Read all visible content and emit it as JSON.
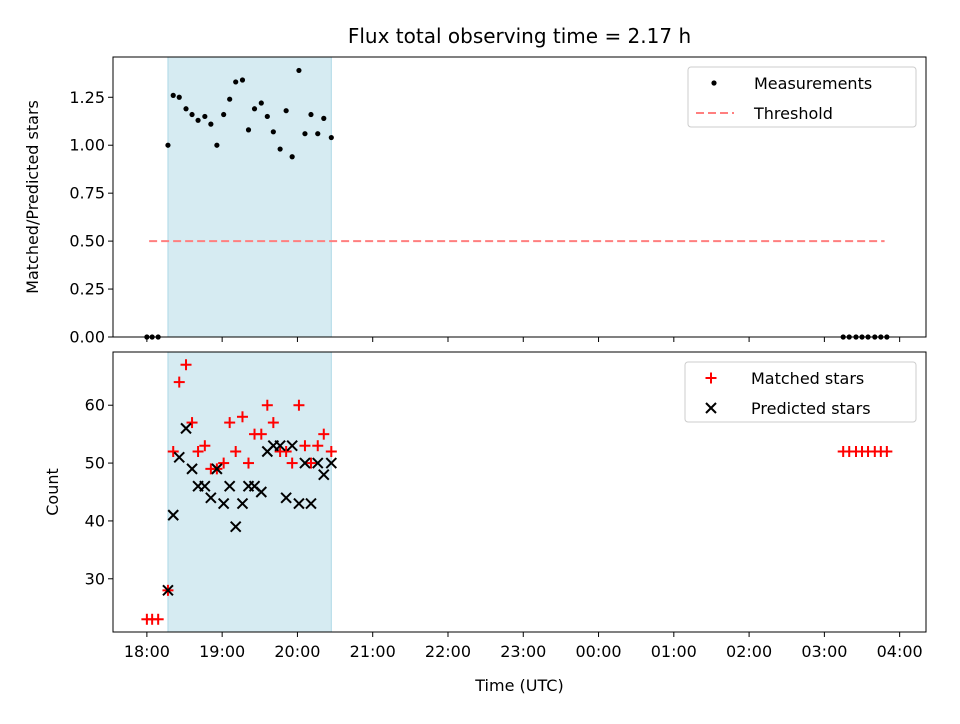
{
  "title": "Flux total observing time = 2.17 h",
  "chart_data": [
    {
      "type": "scatter",
      "panel": "top",
      "title": "Flux total observing time = 2.17 h",
      "xlabel": "",
      "ylabel": "Matched/Predicted stars",
      "xlim": [
        17.55,
        28.35
      ],
      "ylim": [
        0.0,
        1.46
      ],
      "x_axis": "time (hours since 18:00 base date, shown as UTC clock)",
      "yticks": [
        0.0,
        0.25,
        0.5,
        0.75,
        1.0,
        1.25
      ],
      "ytick_labels": [
        "0.00",
        "0.25",
        "0.50",
        "0.75",
        "1.00",
        "1.25"
      ],
      "highlight_span": {
        "x0": 18.28,
        "x1": 20.45,
        "color": "#add8e6"
      },
      "legend": {
        "placement": "upper right",
        "entries": [
          "Measurements",
          "Threshold"
        ]
      },
      "series": [
        {
          "name": "Measurements",
          "style": "dot",
          "color": "#000000",
          "x": [
            18.0,
            18.07,
            18.15,
            18.28,
            18.35,
            18.43,
            18.52,
            18.6,
            18.68,
            18.77,
            18.85,
            18.93,
            19.02,
            19.1,
            19.18,
            19.27,
            19.35,
            19.43,
            19.52,
            19.6,
            19.68,
            19.77,
            19.85,
            19.93,
            20.02,
            20.1,
            20.18,
            20.27,
            20.35,
            20.45,
            27.25,
            27.33,
            27.42,
            27.5,
            27.58,
            27.67,
            27.75,
            27.83
          ],
          "y": [
            0.0,
            0.0,
            0.0,
            1.0,
            1.26,
            1.25,
            1.19,
            1.16,
            1.13,
            1.15,
            1.11,
            1.0,
            1.16,
            1.24,
            1.33,
            1.34,
            1.08,
            1.19,
            1.22,
            1.15,
            1.07,
            0.98,
            1.18,
            0.94,
            1.39,
            1.06,
            1.16,
            1.06,
            1.14,
            1.04,
            0.0,
            0.0,
            0.0,
            0.0,
            0.0,
            0.0,
            0.0,
            0.0
          ]
        },
        {
          "name": "Threshold",
          "style": "dashed-line",
          "color": "#ff7f7f",
          "x": [
            18.03,
            27.8
          ],
          "y": [
            0.5,
            0.5
          ]
        }
      ]
    },
    {
      "type": "scatter",
      "panel": "bottom",
      "title": "",
      "xlabel": "Time (UTC)",
      "ylabel": "Count",
      "xlim": [
        17.55,
        28.35
      ],
      "ylim": [
        20.8,
        69.2
      ],
      "xticks": [
        18,
        19,
        20,
        21,
        22,
        23,
        24,
        25,
        26,
        27,
        28
      ],
      "xtick_labels": [
        "18:00",
        "19:00",
        "20:00",
        "21:00",
        "22:00",
        "23:00",
        "00:00",
        "01:00",
        "02:00",
        "03:00",
        "04:00"
      ],
      "yticks": [
        30,
        40,
        50,
        60
      ],
      "ytick_labels": [
        "30",
        "40",
        "50",
        "60"
      ],
      "highlight_span": {
        "x0": 18.28,
        "x1": 20.45,
        "color": "#add8e6"
      },
      "legend": {
        "placement": "upper right",
        "entries": [
          "Matched stars",
          "Predicted stars"
        ]
      },
      "series": [
        {
          "name": "Matched stars",
          "style": "plus",
          "color": "#ff0000",
          "x": [
            18.0,
            18.07,
            18.15,
            18.28,
            18.35,
            18.43,
            18.52,
            18.6,
            18.68,
            18.77,
            18.85,
            18.93,
            19.02,
            19.1,
            19.18,
            19.27,
            19.35,
            19.43,
            19.52,
            19.6,
            19.68,
            19.77,
            19.85,
            19.93,
            20.02,
            20.1,
            20.18,
            20.27,
            20.35,
            20.45,
            27.25,
            27.33,
            27.42,
            27.5,
            27.58,
            27.67,
            27.75,
            27.83
          ],
          "y": [
            23,
            23,
            23,
            28,
            52,
            64,
            67,
            57,
            52,
            53,
            49,
            49,
            50,
            57,
            52,
            58,
            50,
            55,
            55,
            60,
            57,
            52,
            52,
            50,
            60,
            53,
            50,
            53,
            55,
            52,
            52,
            52,
            52,
            52,
            52,
            52,
            52,
            52
          ]
        },
        {
          "name": "Predicted stars",
          "style": "x",
          "color": "#000000",
          "x": [
            18.28,
            18.35,
            18.43,
            18.52,
            18.6,
            18.68,
            18.77,
            18.85,
            18.93,
            19.02,
            19.1,
            19.18,
            19.27,
            19.35,
            19.43,
            19.52,
            19.6,
            19.68,
            19.77,
            19.85,
            19.93,
            20.02,
            20.1,
            20.18,
            20.27,
            20.35,
            20.45
          ],
          "y": [
            28,
            41,
            51,
            56,
            49,
            46,
            46,
            44,
            49,
            43,
            46,
            39,
            43,
            46,
            46,
            45,
            52,
            53,
            53,
            44,
            53,
            43,
            50,
            43,
            50,
            48,
            50
          ]
        }
      ]
    }
  ]
}
